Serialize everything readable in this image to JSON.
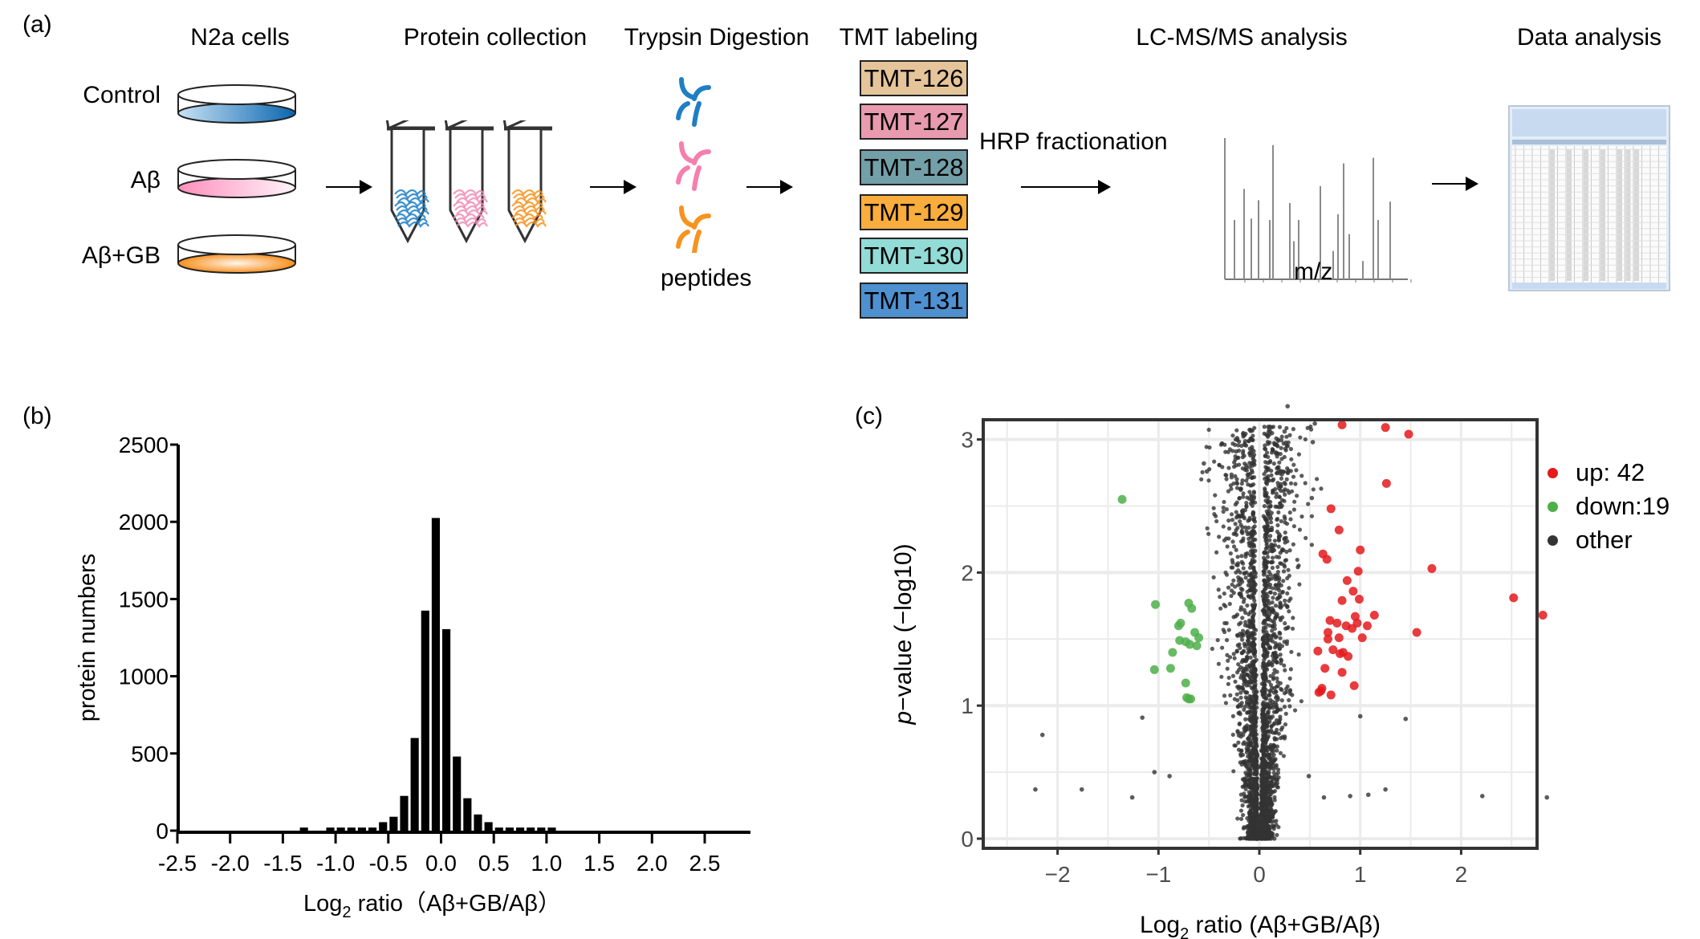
{
  "panel_a": {
    "label": "(a)",
    "steps": [
      {
        "title": "N2a cells"
      },
      {
        "title": "Protein collection"
      },
      {
        "title": "Trypsin Digestion"
      },
      {
        "title": "TMT labeling"
      },
      {
        "title": "LC-MS/MS analysis"
      },
      {
        "title": "Data analysis"
      }
    ],
    "samples": [
      {
        "label": "Control",
        "color_from": "#c8e2f4",
        "color_to": "#0a66b0"
      },
      {
        "label": "Aβ",
        "color_from": "#ff8fbd",
        "color_to": "#fff4f8"
      },
      {
        "label": "Aβ+GB",
        "color_from": "#f7901e",
        "color_to": "#fff6ec"
      }
    ],
    "tube_colors": [
      "#1e7fc4",
      "#f08cb4",
      "#f7931e"
    ],
    "peptide_colors": [
      "#1e7fc4",
      "#f57fae",
      "#f7931e"
    ],
    "peptides_label": "peptides",
    "tmt_labels": [
      {
        "label": "TMT-126",
        "color": "#e6c49a"
      },
      {
        "label": "TMT-127",
        "color": "#e89aae"
      },
      {
        "label": "TMT-128",
        "color": "#739fa8"
      },
      {
        "label": "TMT-129",
        "color": "#f9ad3d"
      },
      {
        "label": "TMT-130",
        "color": "#92dbd6"
      },
      {
        "label": "TMT-131",
        "color": "#4f90d1"
      }
    ],
    "fractionation_label": "HRP fractionation",
    "spectrum_xlabel": "m/z",
    "spectrum_peaks": [
      1.0,
      0.42,
      0.64,
      0.43,
      0.56,
      0.42,
      0.95,
      0.54,
      0.27,
      0.42,
      0.66,
      0.2,
      0.46,
      0.82,
      0.32,
      0.13,
      0.86,
      0.42,
      0.55
    ]
  },
  "chart_data": [
    {
      "type": "bar",
      "panel_label": "(b)",
      "title": "",
      "xlabel": "Log2 ratio（Aβ+GB/Aβ）",
      "xlabel_main": "Log",
      "xlabel_sub": "2",
      "xlabel_rest": " ratio（Aβ+GB/Aβ）",
      "ylabel": "protein numbers",
      "xlim": [
        -2.5,
        2.95
      ],
      "ylim": [
        0,
        2500
      ],
      "xticks": [
        "-2.5",
        "-2.0",
        "-1.5",
        "-1.0",
        "-0.5",
        "0.0",
        "0.5",
        "1.0",
        "1.5",
        "2.0",
        "2.5"
      ],
      "xtick_values": [
        -2.5,
        -2.0,
        -1.5,
        -1.0,
        -0.5,
        0.0,
        0.5,
        1.0,
        1.5,
        2.0,
        2.5
      ],
      "yticks": [
        0,
        500,
        1000,
        1500,
        2000,
        2500
      ],
      "bin_width": 0.1,
      "bin_centers": [
        -1.3,
        -1.05,
        -0.95,
        -0.85,
        -0.75,
        -0.65,
        -0.55,
        -0.45,
        -0.35,
        -0.25,
        -0.15,
        -0.05,
        0.05,
        0.15,
        0.25,
        0.35,
        0.45,
        0.55,
        0.65,
        0.75,
        0.85,
        0.95,
        1.05
      ],
      "values": [
        20,
        20,
        20,
        20,
        20,
        20,
        55,
        90,
        225,
        600,
        1425,
        2025,
        1305,
        480,
        210,
        105,
        55,
        20,
        20,
        20,
        20,
        20,
        20
      ],
      "grid": false
    },
    {
      "type": "scatter",
      "panel_label": "(c)",
      "title": "",
      "xlabel_main": "Log",
      "xlabel_sub": "2",
      "xlabel_rest": " ratio (Aβ+GB/Aβ)",
      "xlabel": "Log2 ratio (Aβ+GB/Aβ)",
      "ylabel_italic": "p",
      "ylabel_rest": "−value (−log10)",
      "ylabel": "p−value (−log10)",
      "xlim": [
        -2.65,
        2.8
      ],
      "ylim": [
        -0.13,
        3.15
      ],
      "xticks": [
        -2,
        -1,
        0,
        1,
        2
      ],
      "xtick_labels": [
        "−2",
        "−1",
        "0",
        "1",
        "2"
      ],
      "yticks": [
        0,
        1,
        2,
        3
      ],
      "grid": true,
      "legend_position": "right",
      "legend": [
        {
          "key": "up",
          "label": "up: 42",
          "color": "#e41a1c"
        },
        {
          "key": "down",
          "label": "down:19",
          "color": "#4daf4a"
        },
        {
          "key": "other",
          "label": "other",
          "color": "#333333"
        }
      ],
      "series": [
        {
          "name": "up",
          "color": "#e41a1c",
          "points": [
            [
              0.82,
              3.11
            ],
            [
              1.25,
              3.09
            ],
            [
              1.48,
              3.04
            ],
            [
              1.26,
              2.67
            ],
            [
              0.71,
              2.48
            ],
            [
              0.79,
              2.32
            ],
            [
              1.0,
              2.17
            ],
            [
              0.63,
              2.14
            ],
            [
              0.67,
              2.1
            ],
            [
              1.71,
              2.03
            ],
            [
              0.98,
              2.01
            ],
            [
              0.87,
              1.94
            ],
            [
              0.93,
              1.86
            ],
            [
              2.52,
              1.81
            ],
            [
              0.82,
              1.79
            ],
            [
              0.99,
              1.8
            ],
            [
              2.81,
              1.68
            ],
            [
              1.14,
              1.68
            ],
            [
              0.95,
              1.67
            ],
            [
              0.7,
              1.64
            ],
            [
              0.77,
              1.62
            ],
            [
              0.97,
              1.62
            ],
            [
              1.07,
              1.6
            ],
            [
              0.86,
              1.6
            ],
            [
              0.92,
              1.58
            ],
            [
              0.68,
              1.55
            ],
            [
              1.56,
              1.55
            ],
            [
              0.68,
              1.5
            ],
            [
              0.79,
              1.51
            ],
            [
              1.02,
              1.51
            ],
            [
              0.58,
              1.41
            ],
            [
              0.73,
              1.42
            ],
            [
              0.8,
              1.39
            ],
            [
              0.83,
              1.4
            ],
            [
              0.88,
              1.37
            ],
            [
              0.65,
              1.28
            ],
            [
              0.82,
              1.25
            ],
            [
              0.94,
              1.15
            ],
            [
              0.62,
              1.13
            ],
            [
              0.59,
              1.1
            ],
            [
              0.61,
              1.11
            ],
            [
              0.71,
              1.08
            ]
          ]
        },
        {
          "name": "down",
          "color": "#4daf4a",
          "points": [
            [
              -1.36,
              2.55
            ],
            [
              -1.03,
              1.76
            ],
            [
              -0.7,
              1.77
            ],
            [
              -0.67,
              1.73
            ],
            [
              -0.8,
              1.6
            ],
            [
              -0.78,
              1.62
            ],
            [
              -0.64,
              1.55
            ],
            [
              -0.79,
              1.49
            ],
            [
              -0.73,
              1.48
            ],
            [
              -0.69,
              1.46
            ],
            [
              -0.6,
              1.51
            ],
            [
              -0.62,
              1.45
            ],
            [
              -0.86,
              1.4
            ],
            [
              -1.04,
              1.27
            ],
            [
              -0.88,
              1.28
            ],
            [
              -0.73,
              1.17
            ],
            [
              -0.72,
              1.06
            ],
            [
              -0.68,
              1.05
            ],
            [
              -0.7,
              1.05
            ]
          ]
        },
        {
          "name": "other",
          "color": "#333333",
          "approx_count": 5200,
          "distribution": "volcano cone centred at x=0; spread widens with -log10 p",
          "outliers": [
            [
              -2.22,
              0.37
            ],
            [
              -2.15,
              0.78
            ],
            [
              -1.76,
              0.37
            ],
            [
              -1.26,
              0.31
            ],
            [
              -1.16,
              0.91
            ],
            [
              -1.04,
              0.5
            ],
            [
              -0.89,
              0.47
            ],
            [
              -0.55,
              2.82
            ],
            [
              -0.52,
              2.76
            ],
            [
              -0.22,
              3.01
            ],
            [
              -0.23,
              2.91
            ],
            [
              0.28,
              3.25
            ],
            [
              0.25,
              3.06
            ],
            [
              0.28,
              2.95
            ],
            [
              0.55,
              3.12
            ],
            [
              0.53,
              2.98
            ],
            [
              0.52,
              2.56
            ],
            [
              1.08,
              0.33
            ],
            [
              1.25,
              0.37
            ],
            [
              1.45,
              0.9
            ],
            [
              2.21,
              0.32
            ],
            [
              2.85,
              0.31
            ],
            [
              1.0,
              0.92
            ],
            [
              0.9,
              0.32
            ],
            [
              0.64,
              0.31
            ],
            [
              0.49,
              0.47
            ]
          ]
        }
      ]
    }
  ]
}
